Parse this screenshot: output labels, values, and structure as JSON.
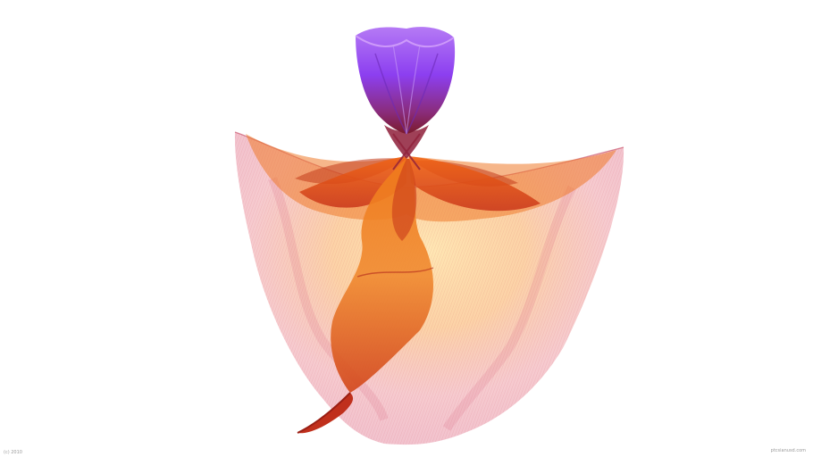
{
  "artwork": {
    "subject": "abstract-flower-figure",
    "colors": {
      "bud": "#8a3ff0",
      "bud_light": "#c98cf5",
      "bud_base": "#8e1f3a",
      "petal_orange": "#ee6a12",
      "petal_dark": "#b3261a",
      "cape_pink": "#e89aa8",
      "cape_glow": "#ffd9a0",
      "stem": "#c0301c"
    }
  },
  "watermark": {
    "left": "(c) 2010",
    "right": "ptcsianusd.com"
  }
}
